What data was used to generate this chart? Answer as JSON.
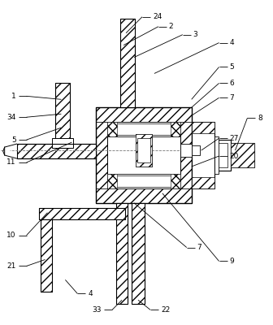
{
  "bg_color": "#ffffff",
  "lc": "#000000",
  "figsize": [
    3.36,
    4.0
  ],
  "dpi": 100
}
